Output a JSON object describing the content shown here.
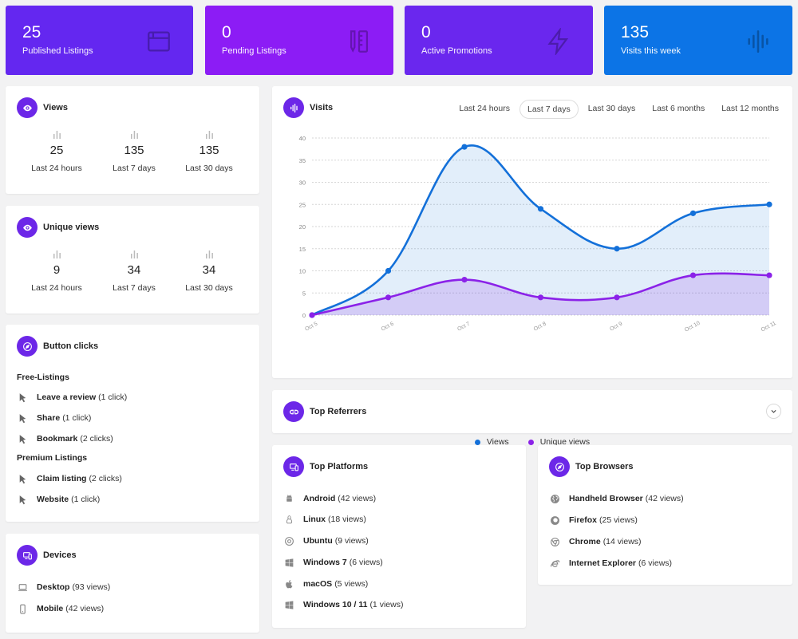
{
  "stats": [
    {
      "value": "25",
      "label": "Published Listings",
      "color": "#6427f0"
    },
    {
      "value": "0",
      "label": "Pending Listings",
      "color": "#8c1cf5"
    },
    {
      "value": "0",
      "label": "Active Promotions",
      "color": "#6a27ee"
    },
    {
      "value": "135",
      "label": "Visits this week",
      "color": "#0c74e6"
    }
  ],
  "views": {
    "title": "Views",
    "items": [
      {
        "value": "25",
        "label": "Last 24 hours"
      },
      {
        "value": "135",
        "label": "Last 7 days"
      },
      {
        "value": "135",
        "label": "Last 30 days"
      }
    ]
  },
  "unique_views": {
    "title": "Unique views",
    "items": [
      {
        "value": "9",
        "label": "Last 24 hours"
      },
      {
        "value": "34",
        "label": "Last 7 days"
      },
      {
        "value": "34",
        "label": "Last 30 days"
      }
    ]
  },
  "button_clicks": {
    "title": "Button clicks",
    "sections": [
      {
        "name": "Free-Listings",
        "items": [
          {
            "name": "Leave a review",
            "count": "(1 click)"
          },
          {
            "name": "Share",
            "count": "(1 click)"
          },
          {
            "name": "Bookmark",
            "count": "(2 clicks)"
          }
        ]
      },
      {
        "name": "Premium Listings",
        "items": [
          {
            "name": "Claim listing",
            "count": "(2 clicks)"
          },
          {
            "name": "Website",
            "count": "(1 click)"
          }
        ]
      }
    ]
  },
  "devices": {
    "title": "Devices",
    "items": [
      {
        "name": "Desktop",
        "count": "(93 views)",
        "icon": "laptop-icon"
      },
      {
        "name": "Mobile",
        "count": "(42 views)",
        "icon": "mobile-icon"
      }
    ]
  },
  "visits": {
    "title": "Visits",
    "tabs": [
      "Last 24 hours",
      "Last 7 days",
      "Last 30 days",
      "Last 6 months",
      "Last 12 months"
    ],
    "active_tab": "Last 7 days"
  },
  "chart_data": {
    "type": "line",
    "categories": [
      "Oct 5",
      "Oct 6",
      "Oct 7",
      "Oct 8",
      "Oct 9",
      "Oct 10",
      "Oct 11"
    ],
    "series": [
      {
        "name": "Views",
        "values": [
          0,
          10,
          38,
          24,
          15,
          23,
          25
        ],
        "color": "#1370d9"
      },
      {
        "name": "Unique views",
        "values": [
          0,
          4,
          8,
          4,
          4,
          9,
          9
        ],
        "color": "#8b22e8"
      }
    ],
    "ylim": [
      0,
      40
    ],
    "yticks": [
      0,
      5,
      10,
      15,
      20,
      25,
      30,
      35,
      40
    ],
    "title": "",
    "xlabel": "",
    "ylabel": "",
    "grid": true,
    "legend": "bottom"
  },
  "referrers": {
    "title": "Top Referrers"
  },
  "platforms": {
    "title": "Top Platforms",
    "items": [
      {
        "name": "Android",
        "count": "(42 views)",
        "icon": "android-icon"
      },
      {
        "name": "Linux",
        "count": "(18 views)",
        "icon": "linux-icon"
      },
      {
        "name": "Ubuntu",
        "count": "(9 views)",
        "icon": "ubuntu-icon"
      },
      {
        "name": "Windows 7",
        "count": "(6 views)",
        "icon": "windows-icon"
      },
      {
        "name": "macOS",
        "count": "(5 views)",
        "icon": "apple-icon"
      },
      {
        "name": "Windows 10 / 11",
        "count": "(1 views)",
        "icon": "windows-icon"
      }
    ]
  },
  "browsers": {
    "title": "Top Browsers",
    "items": [
      {
        "name": "Handheld Browser",
        "count": "(42 views)",
        "icon": "globe-icon"
      },
      {
        "name": "Firefox",
        "count": "(25 views)",
        "icon": "firefox-icon"
      },
      {
        "name": "Chrome",
        "count": "(14 views)",
        "icon": "chrome-icon"
      },
      {
        "name": "Internet Explorer",
        "count": "(6 views)",
        "icon": "ie-icon"
      }
    ]
  }
}
